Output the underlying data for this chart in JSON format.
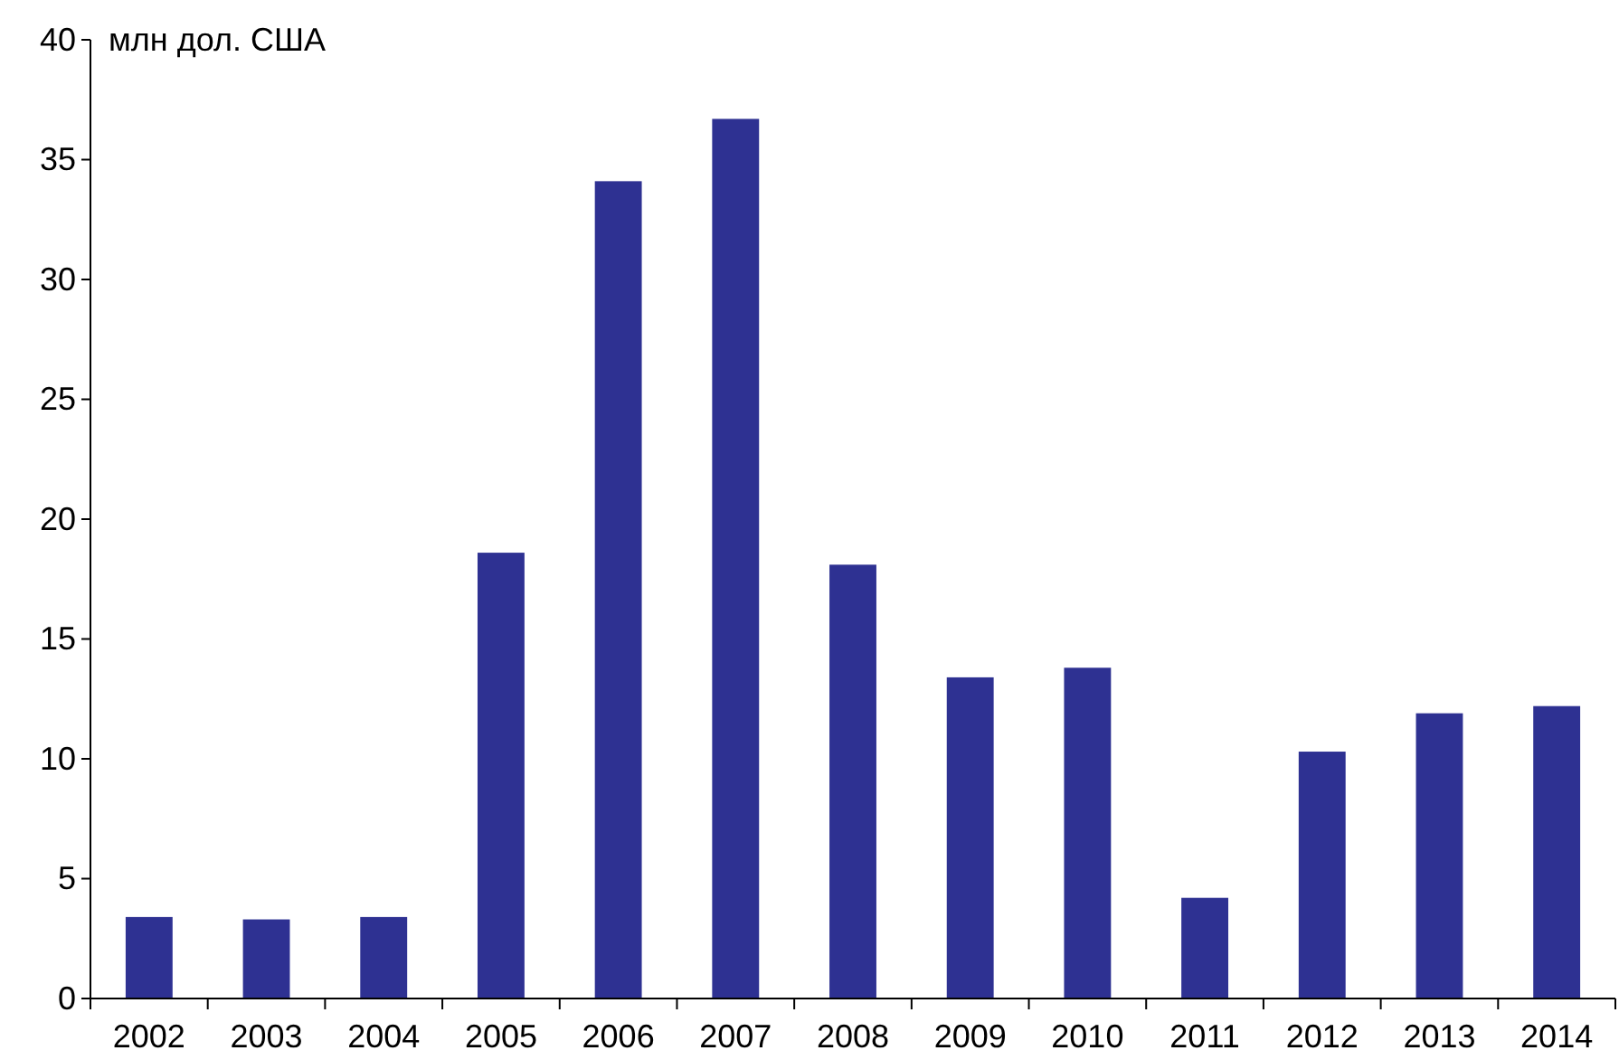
{
  "chart_data": {
    "type": "bar",
    "ylabel": "млн дол. США",
    "categories": [
      "2002",
      "2003",
      "2004",
      "2005",
      "2006",
      "2007",
      "2008",
      "2009",
      "2010",
      "2011",
      "2012",
      "2013",
      "2014"
    ],
    "values": [
      3.4,
      3.3,
      3.4,
      18.6,
      34.1,
      36.7,
      18.1,
      13.4,
      13.8,
      4.2,
      10.3,
      11.9,
      12.2
    ],
    "color": "#2e3192",
    "ylim": [
      0,
      40
    ],
    "yticks": [
      0,
      5,
      10,
      15,
      20,
      25,
      30,
      35,
      40
    ],
    "grid": false
  }
}
